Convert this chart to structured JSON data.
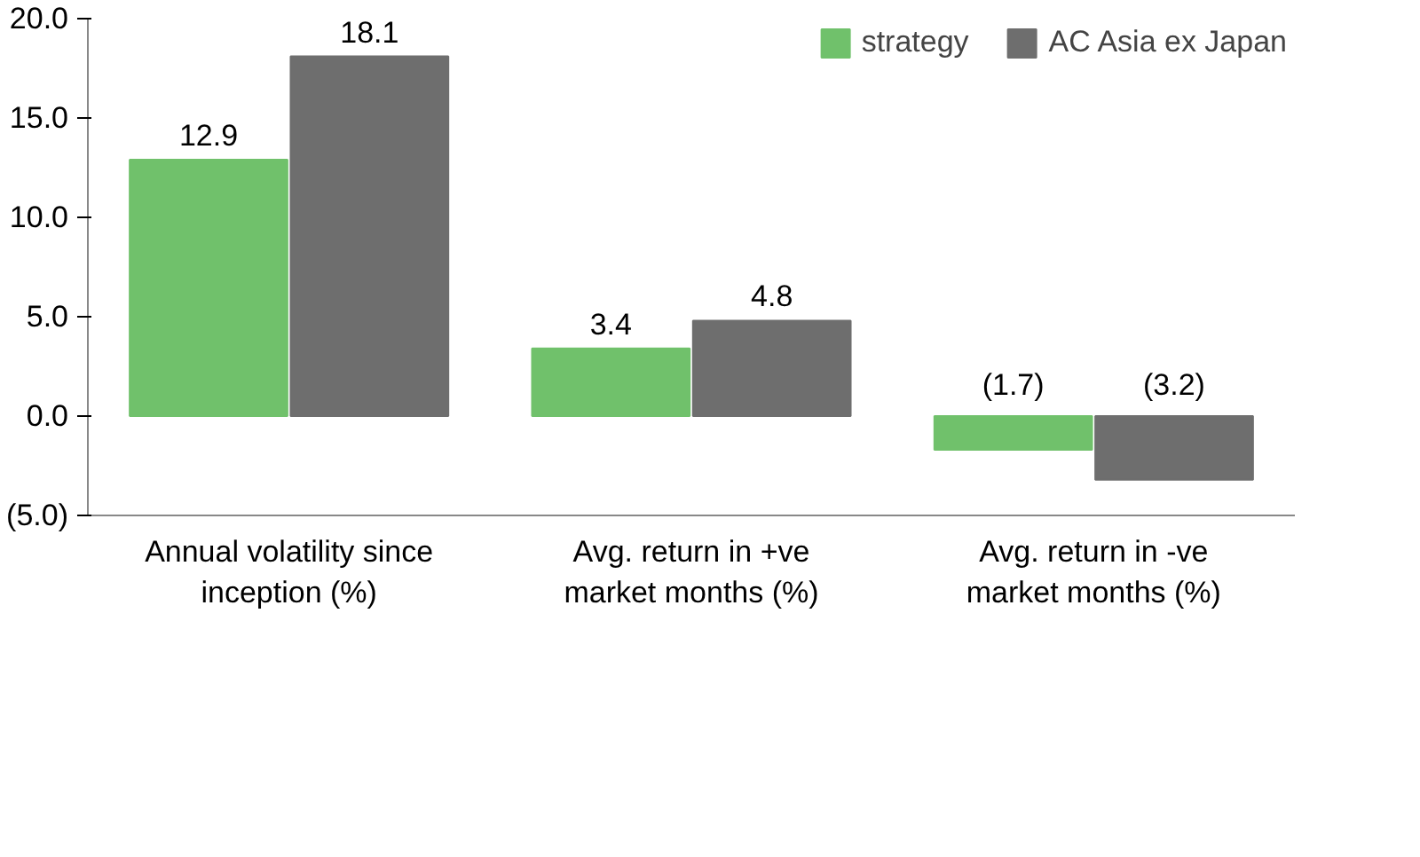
{
  "chart_data": {
    "type": "bar",
    "categories": [
      "Annual volatility since inception (%)",
      "Avg. return in +ve market months (%)",
      "Avg. return in -ve market months (%)"
    ],
    "series": [
      {
        "name": "strategy",
        "color": "#70c16b",
        "values": [
          12.9,
          3.4,
          -1.7
        ],
        "value_labels": [
          "12.9",
          "3.4",
          "(1.7)"
        ]
      },
      {
        "name": "AC Asia ex Japan",
        "color": "#6e6e6e",
        "values": [
          18.1,
          4.8,
          -3.2
        ],
        "value_labels": [
          "18.1",
          "4.8",
          "(3.2)"
        ]
      }
    ],
    "ylim": [
      -5,
      20
    ],
    "yticks": [
      {
        "value": -5,
        "label": "(5.0)"
      },
      {
        "value": 0,
        "label": "0.0"
      },
      {
        "value": 5,
        "label": "5.0"
      },
      {
        "value": 10,
        "label": "10.0"
      },
      {
        "value": 15,
        "label": "15.0"
      },
      {
        "value": 20,
        "label": "20.0"
      }
    ],
    "grid": false,
    "legend": "top right"
  }
}
